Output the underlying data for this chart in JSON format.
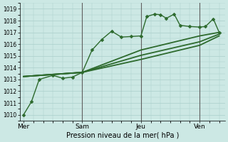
{
  "bg_color": "#cce8e4",
  "grid_color": "#aacfcb",
  "line_color": "#2d6a2d",
  "xlabel": "Pression niveau de la mer( hPa )",
  "ylim": [
    1009.5,
    1019.5
  ],
  "yticks": [
    1010,
    1011,
    1012,
    1013,
    1014,
    1015,
    1016,
    1017,
    1018,
    1019
  ],
  "day_labels": [
    "Mer",
    "Sam",
    "Jeu",
    "Ven"
  ],
  "day_positions": [
    0,
    3,
    6,
    9
  ],
  "xlim": [
    -0.2,
    10.3
  ],
  "vline_positions": [
    3,
    6,
    9
  ],
  "vline_color": "#606060",
  "series_main": {
    "x": [
      0,
      0.4,
      0.8,
      1.5,
      2.0,
      2.5,
      3.0,
      3.5,
      4.0,
      4.5,
      5.0,
      5.5,
      6.0,
      6.3,
      6.7,
      7.0,
      7.3,
      7.7,
      8.0,
      8.5,
      9.0,
      9.3,
      9.7,
      10.0
    ],
    "y": [
      1010.0,
      1011.1,
      1013.0,
      1013.35,
      1013.1,
      1013.2,
      1013.6,
      1015.5,
      1016.4,
      1017.1,
      1016.6,
      1016.65,
      1016.7,
      1018.35,
      1018.55,
      1018.5,
      1018.2,
      1018.55,
      1017.6,
      1017.5,
      1017.45,
      1017.5,
      1018.15,
      1017.0
    ]
  },
  "series_smooth": [
    {
      "x": [
        0,
        3,
        6,
        9,
        10.0
      ],
      "y": [
        1013.25,
        1013.6,
        1015.5,
        1016.7,
        1017.0
      ]
    },
    {
      "x": [
        0,
        3,
        6,
        9,
        10.0
      ],
      "y": [
        1013.25,
        1013.6,
        1015.05,
        1016.2,
        1016.85
      ]
    },
    {
      "x": [
        0,
        3,
        6,
        9,
        10.0
      ],
      "y": [
        1013.25,
        1013.6,
        1014.7,
        1015.9,
        1016.7
      ]
    }
  ]
}
